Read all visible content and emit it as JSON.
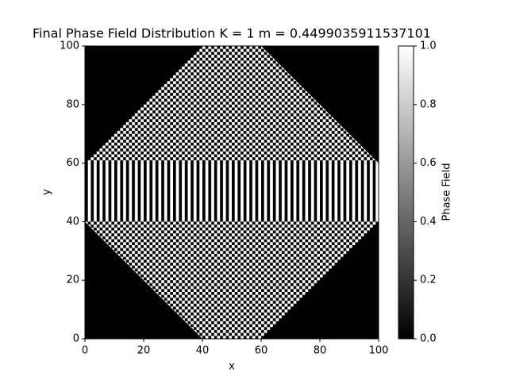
{
  "chart_data": {
    "type": "heatmap",
    "title": "Final Phase Field Distribution K = 1 m = 0.4499035911537101",
    "xlabel": "x",
    "ylabel": "y",
    "xlim": [
      0,
      100
    ],
    "ylim": [
      0,
      100
    ],
    "xticks": [
      0,
      20,
      40,
      60,
      80,
      100
    ],
    "yticks": [
      0,
      20,
      40,
      60,
      80,
      100
    ],
    "background": 0,
    "cell": 1,
    "cmap": [
      "#000000",
      "#ffffff"
    ],
    "regions": [
      {
        "points": [
          [
            0,
            60
          ],
          [
            100,
            60
          ],
          [
            60,
            100
          ],
          [
            40,
            100
          ]
        ],
        "pattern": "checkerboard",
        "values": [
          0,
          1
        ]
      },
      {
        "points": [
          [
            0,
            40
          ],
          [
            100,
            40
          ],
          [
            60,
            0
          ],
          [
            40,
            0
          ]
        ],
        "pattern": "checkerboard",
        "values": [
          0,
          1
        ]
      },
      {
        "points": [
          [
            0,
            40
          ],
          [
            100,
            40
          ],
          [
            100,
            60
          ],
          [
            0,
            60
          ]
        ],
        "pattern": "stripes",
        "values": [
          0,
          1
        ]
      }
    ],
    "colorbar": {
      "label": "Phase Field",
      "clim": [
        0,
        1
      ],
      "ticks": [
        {
          "value": 0,
          "label": "0.0"
        },
        {
          "value": 0.2,
          "label": "0.2"
        },
        {
          "value": 0.4,
          "label": "0.4"
        },
        {
          "value": 0.6,
          "label": "0.6"
        },
        {
          "value": 0.8,
          "label": "0.8"
        },
        {
          "value": 1,
          "label": "1.0"
        }
      ]
    }
  }
}
